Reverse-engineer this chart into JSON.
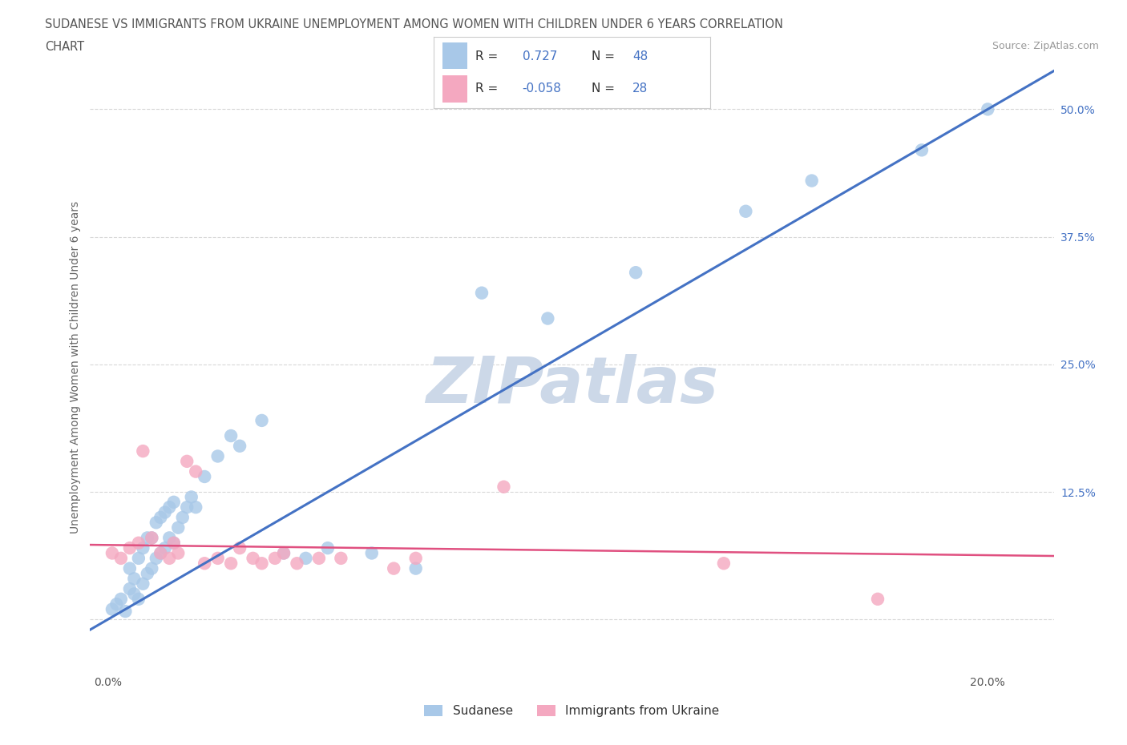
{
  "title_line1": "SUDANESE VS IMMIGRANTS FROM UKRAINE UNEMPLOYMENT AMONG WOMEN WITH CHILDREN UNDER 6 YEARS CORRELATION",
  "title_line2": "CHART",
  "source_text": "Source: ZipAtlas.com",
  "ylabel": "Unemployment Among Women with Children Under 6 years",
  "x_ticks": [
    0.0,
    0.05,
    0.1,
    0.15,
    0.2
  ],
  "y_ticks": [
    0.0,
    0.125,
    0.25,
    0.375,
    0.5
  ],
  "y_tick_labels": [
    "",
    "12.5%",
    "25.0%",
    "37.5%",
    "50.0%"
  ],
  "xlim": [
    -0.004,
    0.215
  ],
  "ylim": [
    -0.05,
    0.545
  ],
  "sudanese_R": 0.727,
  "sudanese_N": 48,
  "ukraine_R": -0.058,
  "ukraine_N": 28,
  "sudanese_color": "#a8c8e8",
  "ukraine_color": "#f4a8c0",
  "sudanese_line_color": "#4472c4",
  "ukraine_line_color": "#e05080",
  "label_color": "#4472c4",
  "watermark_color": "#ccd8e8",
  "sudanese_label": "Sudanese",
  "ukraine_label": "Immigrants from Ukraine",
  "sudanese_x": [
    0.001,
    0.002,
    0.003,
    0.004,
    0.005,
    0.005,
    0.006,
    0.006,
    0.007,
    0.007,
    0.008,
    0.008,
    0.009,
    0.009,
    0.01,
    0.01,
    0.011,
    0.011,
    0.012,
    0.012,
    0.013,
    0.013,
    0.014,
    0.014,
    0.015,
    0.015,
    0.016,
    0.017,
    0.018,
    0.019,
    0.02,
    0.022,
    0.025,
    0.028,
    0.03,
    0.035,
    0.04,
    0.045,
    0.05,
    0.06,
    0.07,
    0.085,
    0.1,
    0.12,
    0.145,
    0.16,
    0.185,
    0.2
  ],
  "sudanese_y": [
    0.01,
    0.015,
    0.02,
    0.008,
    0.03,
    0.05,
    0.025,
    0.04,
    0.02,
    0.06,
    0.035,
    0.07,
    0.045,
    0.08,
    0.05,
    0.08,
    0.06,
    0.095,
    0.065,
    0.1,
    0.07,
    0.105,
    0.08,
    0.11,
    0.075,
    0.115,
    0.09,
    0.1,
    0.11,
    0.12,
    0.11,
    0.14,
    0.16,
    0.18,
    0.17,
    0.195,
    0.065,
    0.06,
    0.07,
    0.065,
    0.05,
    0.32,
    0.295,
    0.34,
    0.4,
    0.43,
    0.46,
    0.5
  ],
  "ukraine_x": [
    0.001,
    0.003,
    0.005,
    0.007,
    0.008,
    0.01,
    0.012,
    0.014,
    0.015,
    0.016,
    0.018,
    0.02,
    0.022,
    0.025,
    0.028,
    0.03,
    0.033,
    0.035,
    0.038,
    0.04,
    0.043,
    0.048,
    0.053,
    0.065,
    0.07,
    0.09,
    0.14,
    0.175
  ],
  "ukraine_y": [
    0.065,
    0.06,
    0.07,
    0.075,
    0.165,
    0.08,
    0.065,
    0.06,
    0.075,
    0.065,
    0.155,
    0.145,
    0.055,
    0.06,
    0.055,
    0.07,
    0.06,
    0.055,
    0.06,
    0.065,
    0.055,
    0.06,
    0.06,
    0.05,
    0.06,
    0.13,
    0.055,
    0.02
  ],
  "background_color": "#ffffff",
  "grid_color": "#d8d8d8"
}
